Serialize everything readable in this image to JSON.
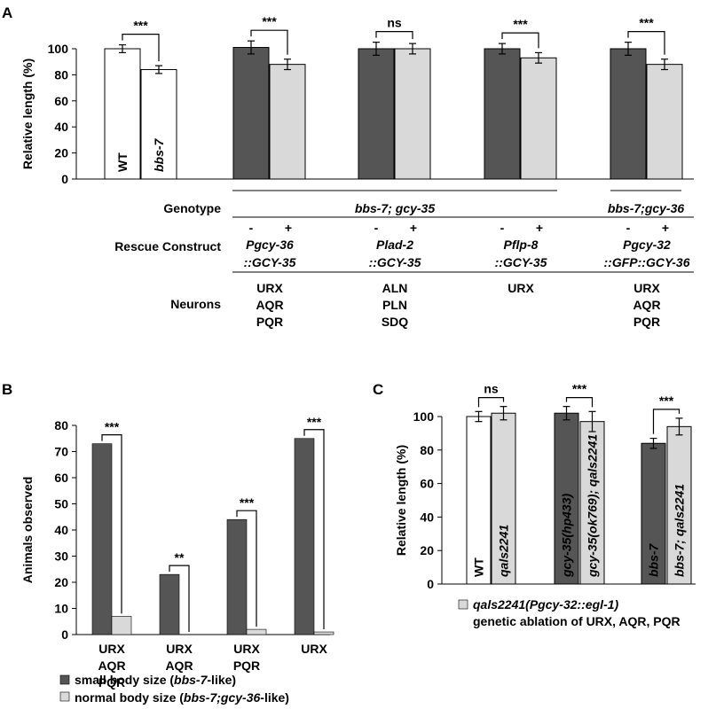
{
  "panels": {
    "a": "A",
    "b": "B",
    "c": "C"
  },
  "colors": {
    "dark": "#555555",
    "light": "#d9d9d9",
    "white": "#ffffff",
    "axis": "#000000"
  },
  "panel_a": {
    "row_labels": {
      "genotype": "Genotype",
      "rescue": "Rescue Construct",
      "neurons": "Neurons"
    },
    "genotypes": [
      {
        "label": "bbs-7; gcy-35"
      },
      {
        "label": "bbs-7;gcy-36"
      }
    ],
    "groups": [
      {
        "construct_line1": "Pgcy-36",
        "construct_line2": "::GCY-35",
        "neurons": [
          "URX",
          "AQR",
          "PQR"
        ]
      },
      {
        "construct_line1": "Plad-2",
        "construct_line2": "::GCY-35",
        "neurons": [
          "ALN",
          "PLN",
          "SDQ"
        ]
      },
      {
        "construct_line1": "Pflp-8",
        "construct_line2": "::GCY-35",
        "neurons": [
          "URX"
        ]
      },
      {
        "construct_line1": "Pgcy-32",
        "construct_line2": "::GFP::GCY-36",
        "neurons": [
          "URX",
          "AQR",
          "PQR"
        ]
      }
    ],
    "minus_plus": [
      "-",
      "+"
    ]
  },
  "panel_b_legend": {
    "items": [
      {
        "pre": "small body size (",
        "ital": "bbs-7",
        "post": "-like)"
      },
      {
        "pre": "normal body size (",
        "ital": "bbs-7;gcy-36",
        "post": "-like)"
      }
    ]
  },
  "panel_c_legend": {
    "line1": "qals2241(Pgcy-32::egl-1)",
    "line2": "genetic ablation of URX, AQR, PQR"
  },
  "chart_data": [
    {
      "panel": "A",
      "type": "bar",
      "ylabel": "Relative length (%)",
      "ylim": [
        0,
        100
      ],
      "yticks": [
        0,
        20,
        40,
        60,
        80,
        100
      ],
      "bars": [
        {
          "value": 100,
          "err": 3,
          "color": "white",
          "label": "WT"
        },
        {
          "value": 84,
          "err": 3,
          "color": "white",
          "label": "bbs-7"
        },
        {
          "value": 101,
          "err": 5,
          "color": "dark",
          "label": ""
        },
        {
          "value": 88,
          "err": 4,
          "color": "light",
          "label": ""
        },
        {
          "value": 100,
          "err": 5,
          "color": "dark",
          "label": ""
        },
        {
          "value": 100,
          "err": 4,
          "color": "light",
          "label": ""
        },
        {
          "value": 100,
          "err": 4,
          "color": "dark",
          "label": ""
        },
        {
          "value": 93,
          "err": 4,
          "color": "light",
          "label": ""
        },
        {
          "value": 100,
          "err": 5,
          "color": "dark",
          "label": ""
        },
        {
          "value": 88,
          "err": 4,
          "color": "light",
          "label": ""
        }
      ],
      "significance": [
        {
          "pair": [
            0,
            1
          ],
          "label": "***"
        },
        {
          "pair": [
            2,
            3
          ],
          "label": "***"
        },
        {
          "pair": [
            4,
            5
          ],
          "label": "ns"
        },
        {
          "pair": [
            6,
            7
          ],
          "label": "***"
        },
        {
          "pair": [
            8,
            9
          ],
          "label": "***"
        }
      ]
    },
    {
      "panel": "B",
      "type": "bar",
      "ylabel": "Animals observed",
      "ylim": [
        0,
        80
      ],
      "yticks": [
        0,
        10,
        20,
        30,
        40,
        50,
        60,
        70,
        80
      ],
      "categories": [
        [
          "URX",
          "AQR",
          "PQR"
        ],
        [
          "URX",
          "AQR"
        ],
        [
          "URX",
          "PQR"
        ],
        [
          "URX"
        ]
      ],
      "series": [
        {
          "name": "small body size (bbs-7-like)",
          "color": "dark",
          "values": [
            73,
            23,
            44,
            75
          ]
        },
        {
          "name": "normal body size (bbs-7;gcy-36-like)",
          "color": "light",
          "values": [
            7,
            0,
            2,
            1
          ]
        }
      ],
      "significance": [
        "***",
        "**",
        "***",
        "***"
      ],
      "legend": "bottom"
    },
    {
      "panel": "C",
      "type": "bar",
      "ylabel": "Relative length (%)",
      "ylim": [
        0,
        100
      ],
      "yticks": [
        0,
        20,
        40,
        60,
        80,
        100
      ],
      "bars": [
        {
          "value": 100,
          "err": 3,
          "color": "white",
          "label": "WT"
        },
        {
          "value": 102,
          "err": 4,
          "color": "light",
          "label": "qals2241"
        },
        {
          "value": 102,
          "err": 4,
          "color": "dark",
          "label": "gcy-35(hp433)"
        },
        {
          "value": 97,
          "err": 6,
          "color": "light",
          "label": "gcy-35(ok769); qals2241"
        },
        {
          "value": 84,
          "err": 3,
          "color": "dark",
          "label": "bbs-7"
        },
        {
          "value": 94,
          "err": 5,
          "color": "light",
          "label": "bbs-7; qals2241"
        }
      ],
      "significance": [
        {
          "pair": [
            0,
            1
          ],
          "label": "ns"
        },
        {
          "pair": [
            2,
            3
          ],
          "label": "***"
        },
        {
          "pair": [
            4,
            5
          ],
          "label": "***"
        }
      ]
    }
  ]
}
